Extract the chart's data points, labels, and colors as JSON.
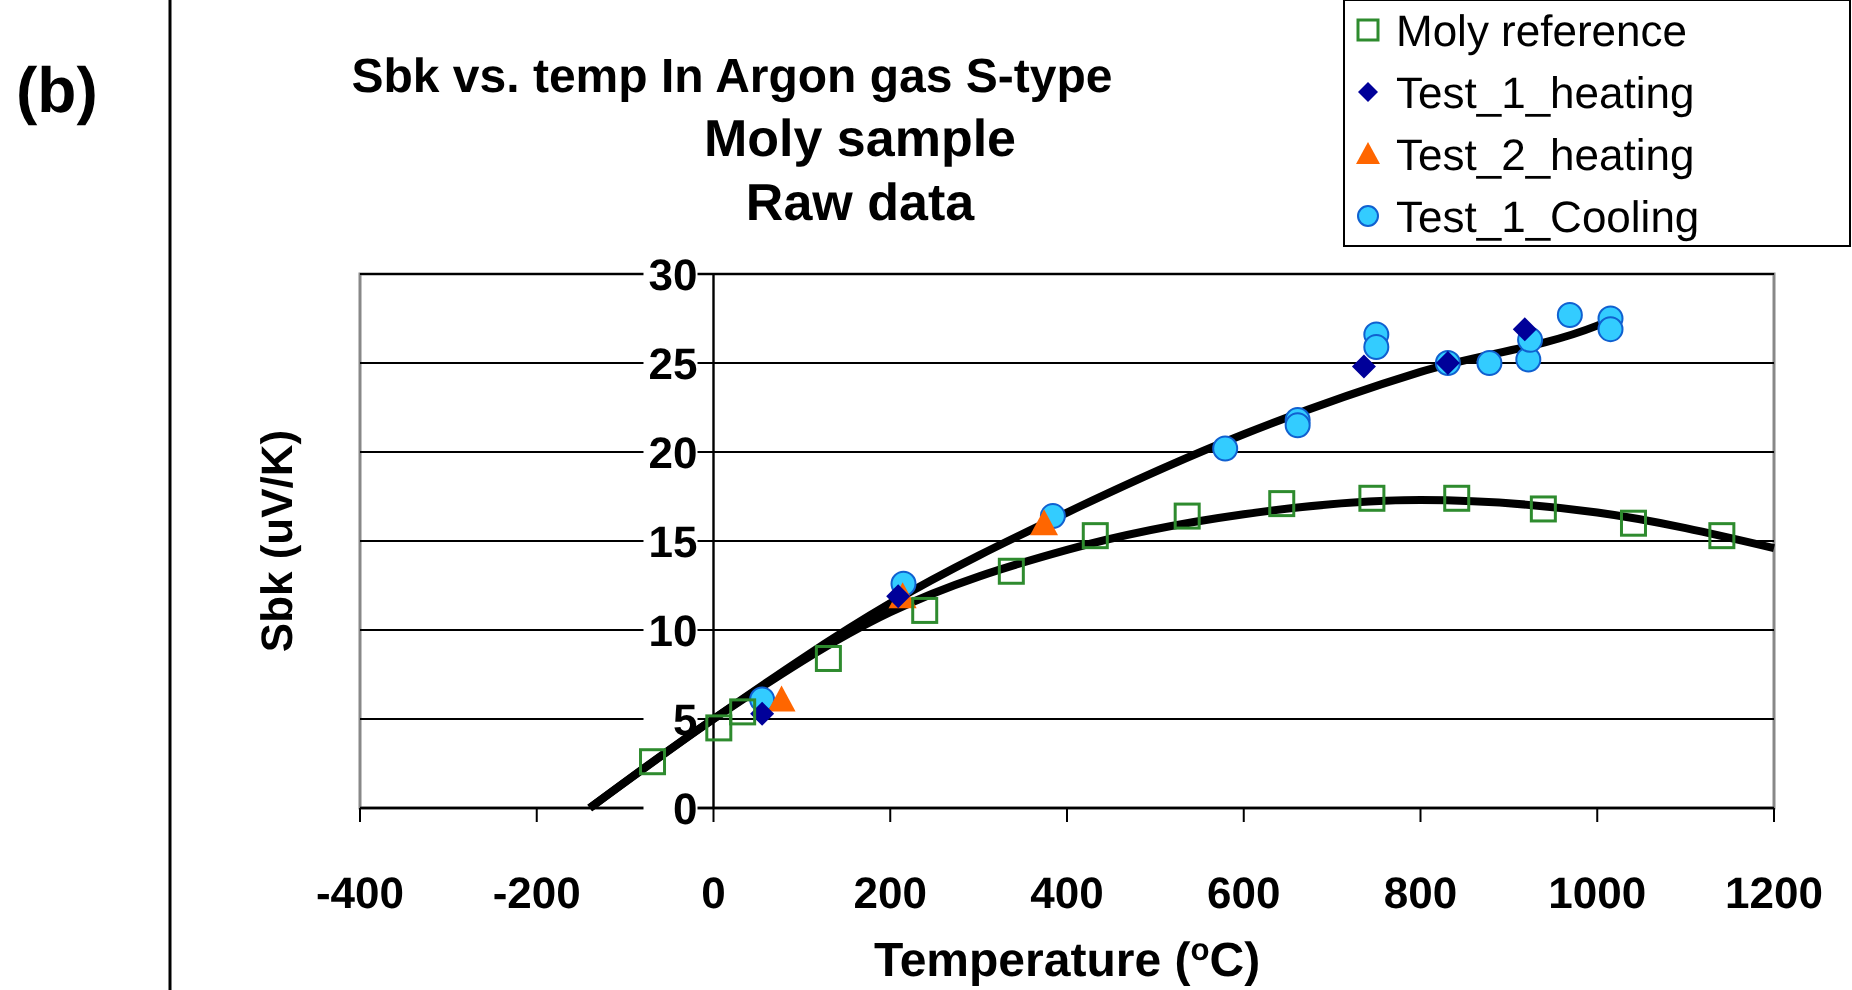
{
  "chart_data": {
    "type": "scatter",
    "title": "Sbk vs. temp In Argon gas S-type\nMoly sample\nRaw data",
    "xlabel": "Temperature ($^{o}$C)",
    "ylabel": "Sbk (uV/K)",
    "annotations": [
      "(b)"
    ],
    "xlim": [
      -400,
      1200
    ],
    "ylim": [
      0,
      30
    ],
    "xticks": [
      -400,
      -200,
      0,
      200,
      400,
      600,
      800,
      1000,
      1200
    ],
    "yticks": [
      0,
      5,
      10,
      15,
      20,
      25,
      30
    ],
    "grid": "y",
    "legend": "top right",
    "series": [
      {
        "name": "Moly reference",
        "marker": "square",
        "color": "#2e8b2e",
        "x": [
          -69,
          6,
          33,
          130,
          239,
          337,
          432,
          536,
          643,
          745,
          841,
          939,
          1041,
          1141
        ],
        "values": [
          2.6,
          4.5,
          5.4,
          8.4,
          11.1,
          13.3,
          15.3,
          16.4,
          17.1,
          17.4,
          17.4,
          16.8,
          16.0,
          15.3
        ]
      },
      {
        "name": "Test_1_heating",
        "marker": "diamond",
        "color": "#000099",
        "x": [
          55,
          209,
          736,
          831,
          918
        ],
        "values": [
          5.3,
          11.9,
          24.8,
          25.0,
          26.9
        ]
      },
      {
        "name": "Test_2_heating",
        "marker": "triangle",
        "color": "#ff6600",
        "x": [
          77,
          214,
          374
        ],
        "values": [
          6.1,
          11.9,
          16.0
        ]
      },
      {
        "name": "Test_1_Cooling",
        "marker": "circle",
        "color": "#33ccff",
        "x": [
          55,
          215,
          384,
          579,
          661,
          661,
          750,
          750,
          831,
          878,
          922,
          924,
          969,
          1015,
          1015
        ],
        "values": [
          6.1,
          12.6,
          16.4,
          20.2,
          21.8,
          21.5,
          26.6,
          25.9,
          25.0,
          25.0,
          25.2,
          26.3,
          27.7,
          27.5,
          26.9
        ]
      },
      {
        "type": "line",
        "marker": "none",
        "color": "#000000",
        "x": [
          -140,
          0,
          200,
          400,
          600,
          800,
          1000,
          1010
        ],
        "values": [
          0,
          5,
          11.5,
          16.6,
          21,
          24.5,
          27.1,
          27.3
        ]
      },
      {
        "type": "line",
        "marker": "none",
        "color": "#000000",
        "x": [
          -140,
          0,
          200,
          400,
          600,
          800,
          1000,
          1200
        ],
        "values": [
          0,
          5,
          11,
          14.5,
          16.5,
          17.3,
          16.6,
          14.6
        ]
      }
    ]
  }
}
